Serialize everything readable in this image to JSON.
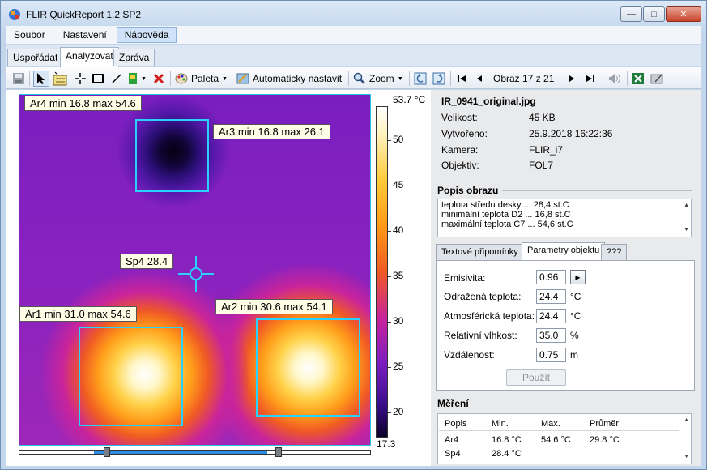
{
  "window": {
    "title": "FLIR QuickReport 1.2 SP2",
    "btn_min": "—",
    "btn_max": "□",
    "btn_close": "✕"
  },
  "menu": {
    "items": [
      "Soubor",
      "Nastavení",
      "Nápověda"
    ]
  },
  "tabs": [
    "Uspořádat",
    "Analyzovat",
    "Zpráva"
  ],
  "toolbar": {
    "palette": "Paleta",
    "auto_adjust": "Automaticky nastavit",
    "zoom": "Zoom",
    "image_counter": "Obraz 17 z 21"
  },
  "thermal_image": {
    "labels": {
      "ar4": "Ar4 min 16.8 max 54.6",
      "ar3": "Ar3 min 16.8 max 26.1",
      "sp4": "Sp4 28.4",
      "ar1": "Ar1 min 31.0 max 54.6",
      "ar2": "Ar2 min 30.6 max 54.1"
    },
    "scale": {
      "max": "53.7 °C",
      "min": "17.3",
      "ticks": [
        "50",
        "45",
        "40",
        "35",
        "30",
        "25",
        "20"
      ]
    }
  },
  "file_info": {
    "filename": "IR_0941_original.jpg",
    "rows": [
      {
        "label": "Velikost:",
        "value": "45 KB"
      },
      {
        "label": "Vytvořeno:",
        "value": "25.9.2018 16:22:36"
      },
      {
        "label": "Kamera:",
        "value": "FLIR_i7"
      },
      {
        "label": "Objektiv:",
        "value": "FOL7"
      }
    ]
  },
  "description": {
    "title": "Popis obrazu",
    "lines": [
      "teplota středu desky ... 28,4 st.C",
      "minimální teplota D2 ... 16,8 st.C",
      "maximální teplota C7 ... 54,6 st.C"
    ]
  },
  "param_tabs": [
    "Textové připomínky",
    "Parametry objektu",
    "???"
  ],
  "params": {
    "emissivity": {
      "label": "Emisivita:",
      "value": "0.96"
    },
    "reflected": {
      "label": "Odražená teplota:",
      "value": "24.4",
      "unit": "°C"
    },
    "atmospheric": {
      "label": "Atmosférická teplota:",
      "value": "24.4",
      "unit": "°C"
    },
    "humidity": {
      "label": "Relativní vlhkost:",
      "value": "35.0",
      "unit": "%"
    },
    "distance": {
      "label": "Vzdálenost:",
      "value": "0.75",
      "unit": "m"
    },
    "apply": "Použít"
  },
  "measurements": {
    "title": "Měření",
    "headers": [
      "Popis",
      "Min.",
      "Max.",
      "Průměr"
    ],
    "rows": [
      [
        "Ar4",
        "16.8 °C",
        "54.6 °C",
        "29.8 °C"
      ],
      [
        "Sp4",
        "28.4 °C",
        "",
        ""
      ]
    ]
  }
}
